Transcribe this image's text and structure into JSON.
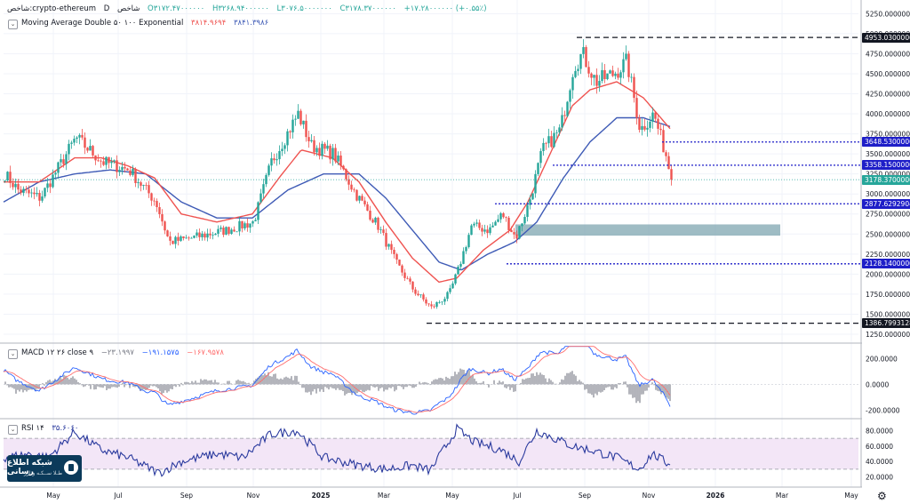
{
  "header": {
    "symbol": "شاخص:crypto-ethereum",
    "interval": "D",
    "index_word": "شاخص",
    "open": "O۳۱۷۲.۴۷۰۰۰۰۰۰",
    "high": "H۳۲۶۸.۹۴۰۰۰۰۰۰",
    "low": "L۳۰۷۶.۵۰۰۰۰۰۰۰",
    "close": "C۳۱۷۸.۳۷۰۰۰۰۰۰",
    "change": "+۱۷.۲۸۰۰۰۰۰۰ (+۰.۵۵٪)",
    "ma_label": "Moving Average Double ۵۰ ۱۰۰ Exponential",
    "ma_v1": "۳۸۱۴.۹۶۹۴",
    "ma_v2": "۳۸۴۱.۳۹۸۶"
  },
  "macd_header": {
    "label": "MACD ۱۲ ۲۶ close ۹",
    "v1": "−۲۳.۱۹۹۷",
    "v2": "−۱۹۱.۱۵۷۵",
    "v3": "−۱۶۷.۹۵۷۸"
  },
  "rsi_header": {
    "label": "RSI ۱۴",
    "v1": "۳۵.۶۰۶۰"
  },
  "logo": {
    "line1": "شبکه اطلاع رسانی",
    "line2": "طـلا ســکـه و ارز"
  },
  "colors": {
    "up": "#26a69a",
    "down": "#ef5350",
    "ma_fast": "#ef5350",
    "ma_slow": "#3f5bb6",
    "macd_line": "#2962ff",
    "signal_line": "#ff6d6d",
    "hist": "#787b86",
    "rsi_line": "#2a3a9e",
    "rsi_band": "#f3e6f7",
    "dashed_black": "#131722",
    "dotted_blue": "#1e1ec8",
    "zone": "#7fa6b0"
  },
  "chart_data": [
    {
      "type": "candlestick",
      "name": "price",
      "x_tick_labels": [
        "May",
        "Jul",
        "Sep",
        "Nov",
        "2025",
        "Mar",
        "May",
        "Jul",
        "Sep",
        "Nov",
        "2026",
        "Mar",
        "May"
      ],
      "y_ticks": [
        "5250.0000000",
        "5000.0000000",
        "4750.0000000",
        "4500.0000000",
        "4250.0000000",
        "4000.0000000",
        "3750.0000000",
        "3500.0000000",
        "3250.0000000",
        "3000.0000000",
        "2750.0000000",
        "2500.0000000",
        "2250.0000000",
        "2000.0000000",
        "1750.0000000",
        "1500.0000000",
        "1250.0000000"
      ],
      "y_tick_values": [
        5250,
        5000,
        4750,
        4500,
        4250,
        4000,
        3750,
        3500,
        3250,
        3000,
        2750,
        2500,
        2250,
        2000,
        1750,
        1500,
        1250
      ],
      "ylim": [
        1150,
        5420
      ],
      "last_price": 3178.37,
      "key_points": [
        [
          0,
          3250
        ],
        [
          15,
          3050
        ],
        [
          40,
          2950
        ],
        [
          80,
          3700
        ],
        [
          110,
          3400
        ],
        [
          140,
          3300
        ],
        [
          170,
          2900
        ],
        [
          185,
          2400
        ],
        [
          210,
          2450
        ],
        [
          250,
          2550
        ],
        [
          280,
          2650
        ],
        [
          300,
          3400
        ],
        [
          320,
          3800
        ],
        [
          330,
          4000
        ],
        [
          345,
          3600
        ],
        [
          370,
          3500
        ],
        [
          395,
          3000
        ],
        [
          420,
          2600
        ],
        [
          440,
          2150
        ],
        [
          460,
          1800
        ],
        [
          480,
          1580
        ],
        [
          500,
          1750
        ],
        [
          510,
          2050
        ],
        [
          525,
          2600
        ],
        [
          545,
          2550
        ],
        [
          560,
          2750
        ],
        [
          575,
          2450
        ],
        [
          590,
          2900
        ],
        [
          605,
          3550
        ],
        [
          625,
          3800
        ],
        [
          640,
          4600
        ],
        [
          650,
          4750
        ],
        [
          665,
          4400
        ],
        [
          685,
          4500
        ],
        [
          700,
          4650
        ],
        [
          715,
          3800
        ],
        [
          730,
          4000
        ],
        [
          745,
          3450
        ],
        [
          750,
          3178.37
        ]
      ],
      "ma_fast_key": [
        [
          0,
          3150
        ],
        [
          40,
          3150
        ],
        [
          80,
          3450
        ],
        [
          110,
          3450
        ],
        [
          140,
          3350
        ],
        [
          170,
          3200
        ],
        [
          200,
          2750
        ],
        [
          240,
          2650
        ],
        [
          280,
          2750
        ],
        [
          310,
          3200
        ],
        [
          335,
          3550
        ],
        [
          370,
          3450
        ],
        [
          400,
          3150
        ],
        [
          430,
          2650
        ],
        [
          460,
          2200
        ],
        [
          490,
          1900
        ],
        [
          510,
          1950
        ],
        [
          540,
          2300
        ],
        [
          570,
          2550
        ],
        [
          590,
          2900
        ],
        [
          615,
          3500
        ],
        [
          640,
          4100
        ],
        [
          660,
          4300
        ],
        [
          690,
          4400
        ],
        [
          720,
          4200
        ],
        [
          750,
          3815
        ]
      ],
      "ma_slow_key": [
        [
          0,
          2900
        ],
        [
          40,
          3150
        ],
        [
          80,
          3250
        ],
        [
          120,
          3300
        ],
        [
          160,
          3250
        ],
        [
          200,
          2900
        ],
        [
          240,
          2700
        ],
        [
          280,
          2700
        ],
        [
          320,
          3050
        ],
        [
          360,
          3250
        ],
        [
          400,
          3250
        ],
        [
          430,
          2950
        ],
        [
          460,
          2550
        ],
        [
          490,
          2150
        ],
        [
          515,
          2050
        ],
        [
          545,
          2250
        ],
        [
          575,
          2400
        ],
        [
          600,
          2650
        ],
        [
          630,
          3200
        ],
        [
          660,
          3650
        ],
        [
          690,
          3950
        ],
        [
          720,
          3950
        ],
        [
          750,
          3841
        ]
      ],
      "levels": [
        {
          "label": "4953.0300000",
          "value": 4953.03,
          "style": "dashed",
          "from": 649,
          "color_key": "dashed_black"
        },
        {
          "label": "3648.5300000",
          "value": 3648.53,
          "style": "dotted",
          "from": 745,
          "color_key": "dotted_blue"
        },
        {
          "label": "3358.1500000",
          "value": 3358.15,
          "style": "dotted",
          "from": 622,
          "color_key": "dotted_blue"
        },
        {
          "label": "3178.3700000",
          "value": 3178.37,
          "style": "price",
          "from": 0,
          "color_key": "up"
        },
        {
          "label": "2877.6292904",
          "value": 2877.63,
          "style": "dotted",
          "from": 557,
          "color_key": "dotted_blue"
        },
        {
          "label": "2128.1400000",
          "value": 2128.14,
          "style": "dotted",
          "from": 570,
          "color_key": "dotted_blue"
        },
        {
          "label": "1386.7993128",
          "value": 1386.8,
          "style": "dashed",
          "from": 480,
          "color_key": "dashed_black"
        }
      ],
      "zone": {
        "from": 580,
        "to": 878,
        "low": 2480,
        "high": 2620
      }
    },
    {
      "type": "line",
      "name": "macd",
      "y_ticks": [
        "200.0000",
        "0.0000",
        "-200.0000"
      ],
      "y_tick_values": [
        200,
        0,
        -200
      ],
      "ylim": [
        -260,
        300
      ]
    },
    {
      "type": "line",
      "name": "rsi",
      "y_ticks": [
        "80.0000",
        "60.0000",
        "40.0000",
        "20.0000"
      ],
      "y_tick_values": [
        80,
        60,
        40,
        20
      ],
      "ylim": [
        8,
        92
      ],
      "band": [
        30,
        70
      ],
      "key": [
        [
          0,
          45
        ],
        [
          30,
          50
        ],
        [
          50,
          45
        ],
        [
          80,
          78
        ],
        [
          110,
          55
        ],
        [
          140,
          45
        ],
        [
          175,
          25
        ],
        [
          200,
          40
        ],
        [
          240,
          50
        ],
        [
          270,
          45
        ],
        [
          300,
          75
        ],
        [
          330,
          80
        ],
        [
          360,
          45
        ],
        [
          400,
          35
        ],
        [
          430,
          30
        ],
        [
          460,
          35
        ],
        [
          480,
          28
        ],
        [
          510,
          82
        ],
        [
          530,
          65
        ],
        [
          560,
          55
        ],
        [
          580,
          40
        ],
        [
          600,
          80
        ],
        [
          620,
          70
        ],
        [
          640,
          60
        ],
        [
          660,
          55
        ],
        [
          690,
          45
        ],
        [
          715,
          30
        ],
        [
          730,
          50
        ],
        [
          750,
          35.6
        ]
      ]
    }
  ]
}
